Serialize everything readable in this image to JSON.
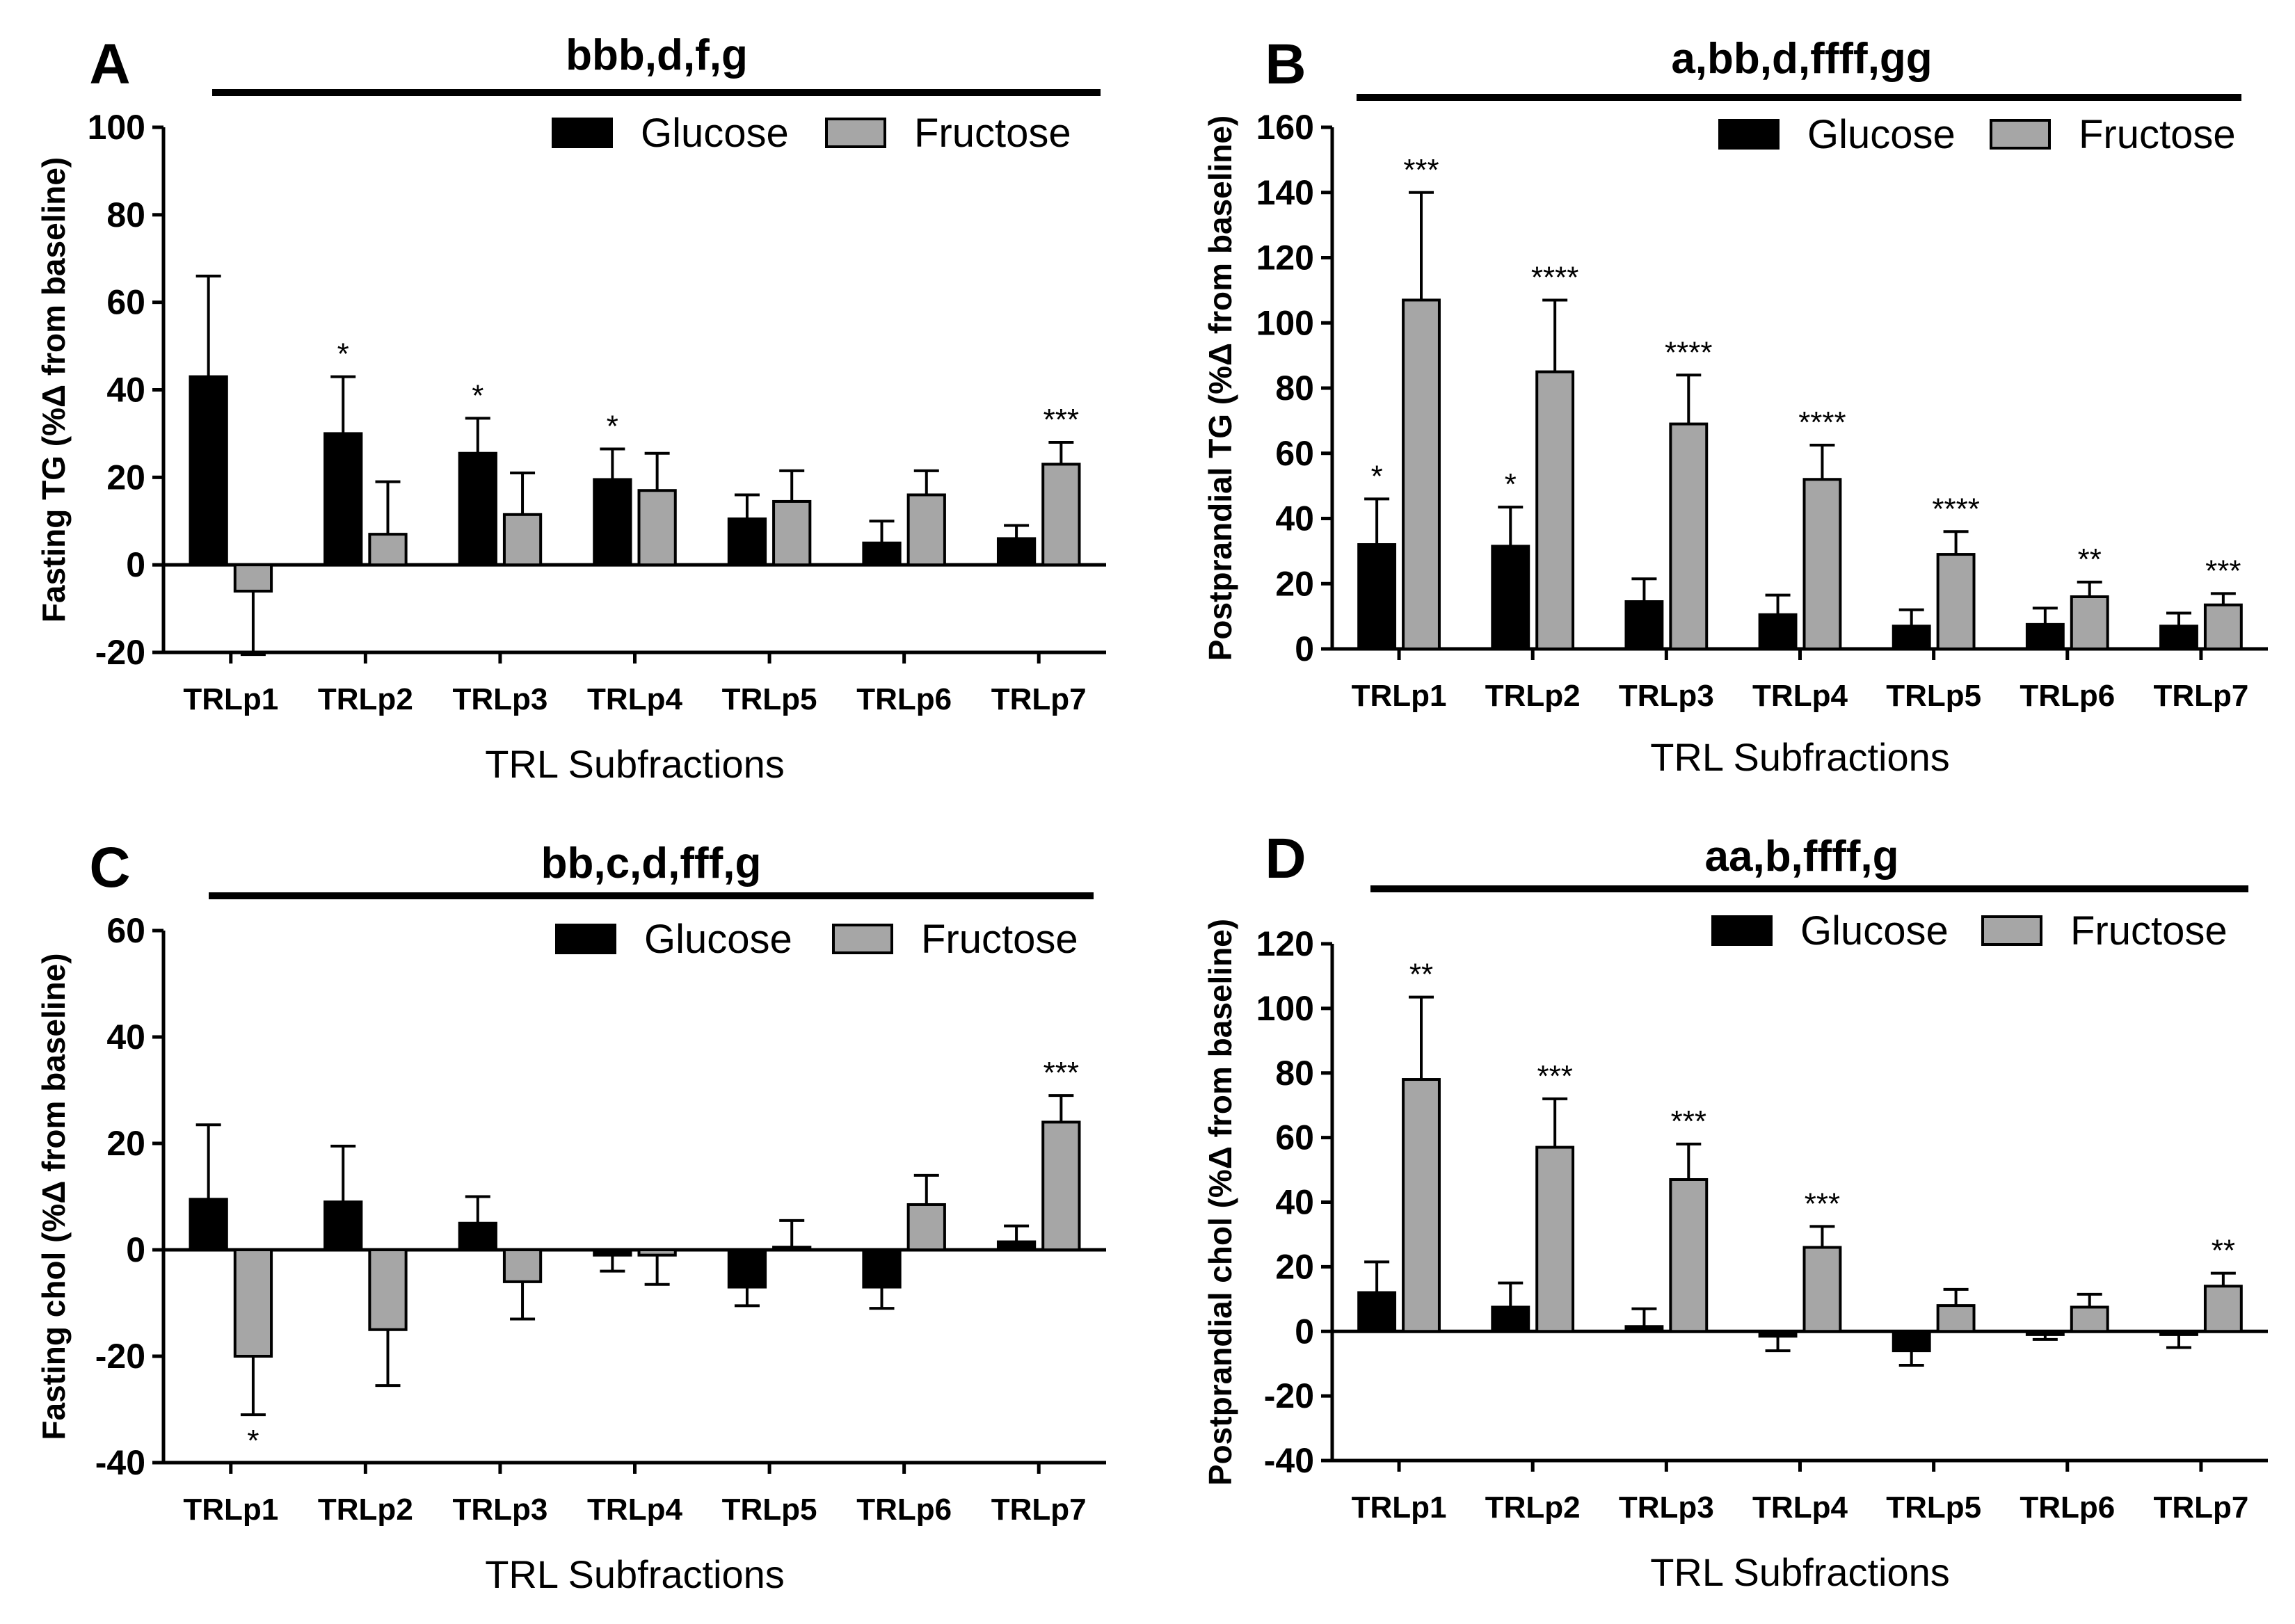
{
  "chart_data": [
    {
      "type": "bar",
      "panel": "A",
      "significance": "bbb,d,f,g",
      "ylabel": "Fasting TG (%Δ from baseline)",
      "xlabel": "TRL Subfractions",
      "ylim": [
        -20,
        100
      ],
      "yticks": [
        -20,
        0,
        20,
        40,
        60,
        80,
        100
      ],
      "categories": [
        "TRLp1",
        "TRLp2",
        "TRLp3",
        "TRLp4",
        "TRLp5",
        "TRLp6",
        "TRLp7"
      ],
      "series": [
        {
          "name": "Glucose",
          "color": "#000000",
          "values": [
            43,
            30,
            25.5,
            19.5,
            10.5,
            5,
            6
          ],
          "errors": [
            23,
            13,
            8,
            7,
            5.5,
            5,
            3
          ],
          "stars": [
            "",
            "*",
            "*",
            "*",
            "",
            "",
            ""
          ]
        },
        {
          "name": "Fructose",
          "color": "#a6a6a6",
          "values": [
            -6,
            7,
            11.5,
            17,
            14.5,
            16,
            23
          ],
          "errors": [
            14.5,
            12,
            9.5,
            8.5,
            7,
            5.5,
            5
          ],
          "stars": [
            "",
            "",
            "",
            "",
            "",
            "",
            "***"
          ]
        }
      ],
      "legend": "top-right"
    },
    {
      "type": "bar",
      "panel": "B",
      "significance": "a,bb,d,ffff,gg",
      "ylabel": "Postprandial TG (%Δ from baseline)",
      "xlabel": "TRL Subfractions",
      "ylim": [
        0,
        160
      ],
      "yticks": [
        0,
        20,
        40,
        60,
        80,
        100,
        120,
        140,
        160
      ],
      "categories": [
        "TRLp1",
        "TRLp2",
        "TRLp3",
        "TRLp4",
        "TRLp5",
        "TRLp6",
        "TRLp7"
      ],
      "series": [
        {
          "name": "Glucose",
          "color": "#000000",
          "values": [
            32,
            31.5,
            14.5,
            10.5,
            7,
            7.5,
            7
          ],
          "errors": [
            14,
            12,
            7,
            6,
            5,
            5,
            4
          ],
          "stars": [
            "*",
            "*",
            "",
            "",
            "",
            "",
            ""
          ]
        },
        {
          "name": "Fructose",
          "color": "#a6a6a6",
          "values": [
            107,
            85,
            69,
            52,
            29,
            16,
            13.5
          ],
          "errors": [
            33,
            22,
            15,
            10.5,
            7,
            4.5,
            3.5
          ],
          "stars": [
            "***",
            "****",
            "****",
            "****",
            "****",
            "**",
            "***"
          ]
        }
      ],
      "legend": "top-right"
    },
    {
      "type": "bar",
      "panel": "C",
      "significance": "bb,c,d,fff,g",
      "ylabel": "Fasting chol (%Δ from baseline)",
      "xlabel": "TRL Subfractions",
      "ylim": [
        -40,
        60
      ],
      "yticks": [
        -40,
        -20,
        0,
        20,
        40,
        60
      ],
      "categories": [
        "TRLp1",
        "TRLp2",
        "TRLp3",
        "TRLp4",
        "TRLp5",
        "TRLp6",
        "TRLp7"
      ],
      "series": [
        {
          "name": "Glucose",
          "color": "#000000",
          "values": [
            9.5,
            9,
            5,
            -1,
            -7,
            -7,
            1.5
          ],
          "errors": [
            14,
            10.5,
            5,
            3,
            3.5,
            4,
            3
          ],
          "stars": [
            "",
            "",
            "",
            "",
            "",
            "",
            ""
          ]
        },
        {
          "name": "Fructose",
          "color": "#a6a6a6",
          "values": [
            -20,
            -15,
            -6,
            -1,
            0.5,
            8.5,
            24
          ],
          "errors": [
            11,
            10.5,
            7,
            5.5,
            5,
            5.5,
            5
          ],
          "stars": [
            "*",
            "",
            "",
            "",
            "",
            "",
            "***"
          ]
        }
      ],
      "legend": "top-right"
    },
    {
      "type": "bar",
      "panel": "D",
      "significance": "aa,b,ffff,g",
      "ylabel": "Postprandial chol  (%Δ from baseline)",
      "xlabel": "TRL Subfractions",
      "ylim": [
        -40,
        120
      ],
      "yticks": [
        -40,
        -20,
        0,
        20,
        40,
        60,
        80,
        100,
        120
      ],
      "categories": [
        "TRLp1",
        "TRLp2",
        "TRLp3",
        "TRLp4",
        "TRLp5",
        "TRLp6",
        "TRLp7"
      ],
      "series": [
        {
          "name": "Glucose",
          "color": "#000000",
          "values": [
            12,
            7.5,
            1.5,
            -1.5,
            -6,
            -1,
            -1
          ],
          "errors": [
            9.5,
            7.5,
            5.5,
            4.5,
            4.5,
            1.5,
            4
          ],
          "stars": [
            "",
            "",
            "",
            "",
            "",
            "",
            ""
          ]
        },
        {
          "name": "Fructose",
          "color": "#a6a6a6",
          "values": [
            78,
            57,
            47,
            26,
            8,
            7.5,
            14
          ],
          "errors": [
            25.5,
            15,
            11,
            6.5,
            5,
            4,
            4
          ],
          "stars": [
            "**",
            "***",
            "***",
            "***",
            "",
            "",
            "**"
          ]
        }
      ],
      "legend": "top-right"
    }
  ]
}
